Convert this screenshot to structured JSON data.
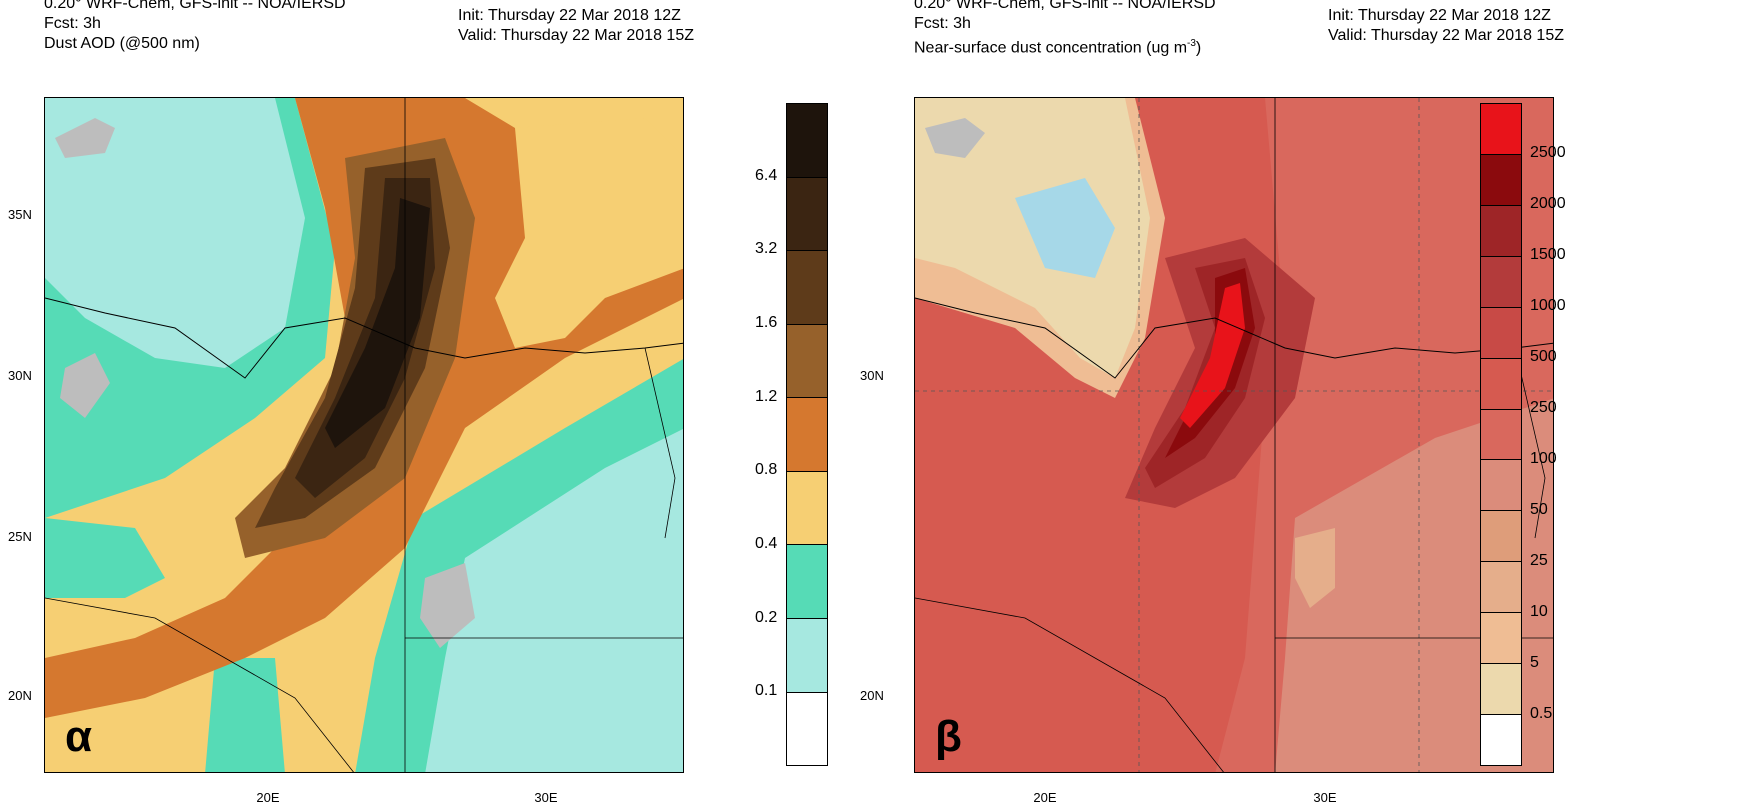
{
  "panels": [
    {
      "header_line1": "0.20° WRF-Chem, GFS-init -- NOA/IERSD",
      "header_line2": "Fcst: 3h",
      "header_line3": "Dust AOD (@500 nm)",
      "init": "Init: Thursday 22 Mar 2018  12Z",
      "valid": "Valid: Thursday 22 Mar 2018  15Z",
      "letter": "α",
      "lat_labels": [
        "35N",
        "30N",
        "25N",
        "20N"
      ],
      "lon_labels": [
        "20E",
        "30E"
      ],
      "colorbar_labels": [
        "6.4",
        "3.2",
        "1.6",
        "1.2",
        "0.8",
        "0.4",
        "0.2",
        "0.1"
      ],
      "colors": [
        "#1e140c",
        "#3b2512",
        "#5e3b1a",
        "#96612b",
        "#d5782f",
        "#f6cf73",
        "#56dbb6",
        "#a6e8e0",
        "#ffffff"
      ]
    },
    {
      "header_line1": "0.20° WRF-Chem, GFS-init -- NOA/IERSD",
      "header_line2": "Fcst: 3h",
      "header_line3_a": "Near-surface dust concentration (ug m",
      "header_line3_sup": "-3",
      "header_line3_b": ")",
      "init": "Init: Thursday 22 Mar 2018  12Z",
      "valid": "Valid: Thursday 22 Mar 2018  15Z",
      "letter": "β",
      "lat_labels": [
        "30N",
        "20N"
      ],
      "lon_labels": [
        "20E",
        "30E"
      ],
      "colorbar_labels": [
        "2500",
        "2000",
        "1500",
        "1000",
        "500",
        "250",
        "100",
        "50",
        "25",
        "10",
        "5",
        "0.5"
      ],
      "colors": [
        "#e8131a",
        "#8b0a0d",
        "#9e2527",
        "#b33b3b",
        "#c84a46",
        "#d65a50",
        "#d9685d",
        "#db8c7b",
        "#de9d7a",
        "#e5ae8b",
        "#efbd94",
        "#ecd9ad",
        "#ffffff"
      ]
    }
  ]
}
